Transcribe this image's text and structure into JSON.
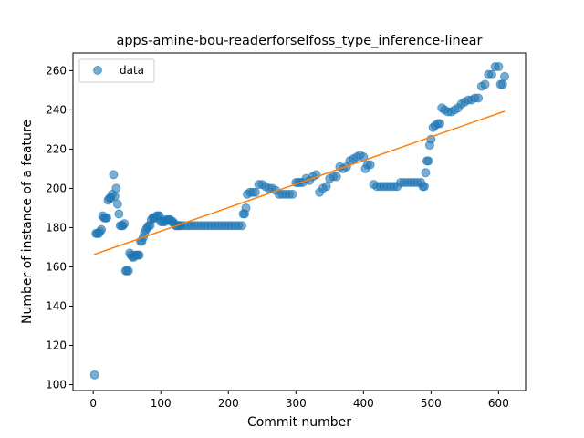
{
  "chart_data": {
    "type": "scatter",
    "title": "apps-amine-bou-readerforselfoss_type_inference-linear",
    "xlabel": "Commit number",
    "ylabel": "Number of instance of a feature",
    "xlim": [
      -30,
      640
    ],
    "ylim": [
      97,
      269
    ],
    "xticks": [
      0,
      100,
      200,
      300,
      400,
      500,
      600
    ],
    "yticks": [
      100,
      120,
      140,
      160,
      180,
      200,
      220,
      240,
      260
    ],
    "grid": false,
    "legend_position": "top-left",
    "colors": {
      "scatter": "#1f77b4",
      "fit": "#ff7f0e"
    },
    "series": [
      {
        "name": "data",
        "kind": "scatter",
        "x": [
          2,
          4,
          6,
          8,
          10,
          12,
          14,
          16,
          18,
          20,
          22,
          24,
          26,
          28,
          30,
          32,
          34,
          36,
          38,
          40,
          42,
          44,
          46,
          48,
          50,
          52,
          54,
          56,
          58,
          60,
          62,
          64,
          66,
          68,
          70,
          72,
          74,
          76,
          78,
          80,
          82,
          84,
          86,
          88,
          90,
          92,
          94,
          96,
          98,
          100,
          102,
          104,
          106,
          108,
          110,
          112,
          114,
          116,
          118,
          120,
          122,
          124,
          126,
          128,
          130,
          135,
          140,
          145,
          150,
          155,
          160,
          165,
          170,
          175,
          180,
          185,
          190,
          195,
          200,
          205,
          210,
          215,
          220,
          222,
          224,
          226,
          228,
          232,
          236,
          240,
          245,
          250,
          255,
          260,
          265,
          270,
          275,
          280,
          285,
          290,
          295,
          300,
          303,
          306,
          310,
          315,
          320,
          325,
          330,
          335,
          340,
          345,
          350,
          355,
          360,
          365,
          370,
          375,
          380,
          385,
          390,
          395,
          400,
          403,
          406,
          410,
          415,
          420,
          425,
          430,
          435,
          440,
          445,
          450,
          455,
          460,
          465,
          470,
          475,
          480,
          485,
          488,
          490,
          492,
          494,
          496,
          498,
          500,
          503,
          506,
          510,
          513,
          516,
          520,
          525,
          530,
          535,
          540,
          545,
          550,
          555,
          560,
          565,
          570,
          575,
          580,
          585,
          590,
          595,
          600,
          603,
          606,
          609
        ],
        "y": [
          105,
          177,
          177,
          177,
          178,
          179,
          186,
          185,
          185,
          185,
          194,
          195,
          195,
          197,
          207,
          196,
          200,
          192,
          187,
          181,
          181,
          181,
          182,
          158,
          158,
          158,
          167,
          166,
          165,
          165,
          166,
          166,
          166,
          166,
          173,
          173,
          175,
          177,
          179,
          180,
          181,
          181,
          184,
          185,
          185,
          185,
          186,
          186,
          186,
          183,
          183,
          183,
          183,
          184,
          184,
          184,
          184,
          183,
          183,
          182,
          181,
          181,
          181,
          181,
          181,
          181,
          181,
          181,
          181,
          181,
          181,
          181,
          181,
          181,
          181,
          181,
          181,
          181,
          181,
          181,
          181,
          181,
          181,
          187,
          187,
          190,
          197,
          198,
          198,
          198,
          202,
          202,
          201,
          200,
          200,
          199,
          197,
          197,
          197,
          197,
          197,
          203,
          203,
          203,
          203,
          205,
          204,
          206,
          207,
          198,
          200,
          201,
          205,
          206,
          206,
          211,
          210,
          211,
          214,
          215,
          216,
          217,
          216,
          210,
          212,
          212,
          202,
          201,
          201,
          201,
          201,
          201,
          201,
          201,
          203,
          203,
          203,
          203,
          203,
          203,
          203,
          201,
          201,
          208,
          214,
          214,
          222,
          225,
          231,
          232,
          233,
          233,
          241,
          240,
          239,
          239,
          240,
          241,
          243,
          244,
          245,
          245,
          246,
          246,
          252,
          253,
          258,
          258,
          262,
          262,
          253,
          253,
          257
        ]
      },
      {
        "name": "",
        "kind": "line",
        "x": [
          1,
          609
        ],
        "y": [
          166.3,
          239.3
        ]
      }
    ]
  }
}
